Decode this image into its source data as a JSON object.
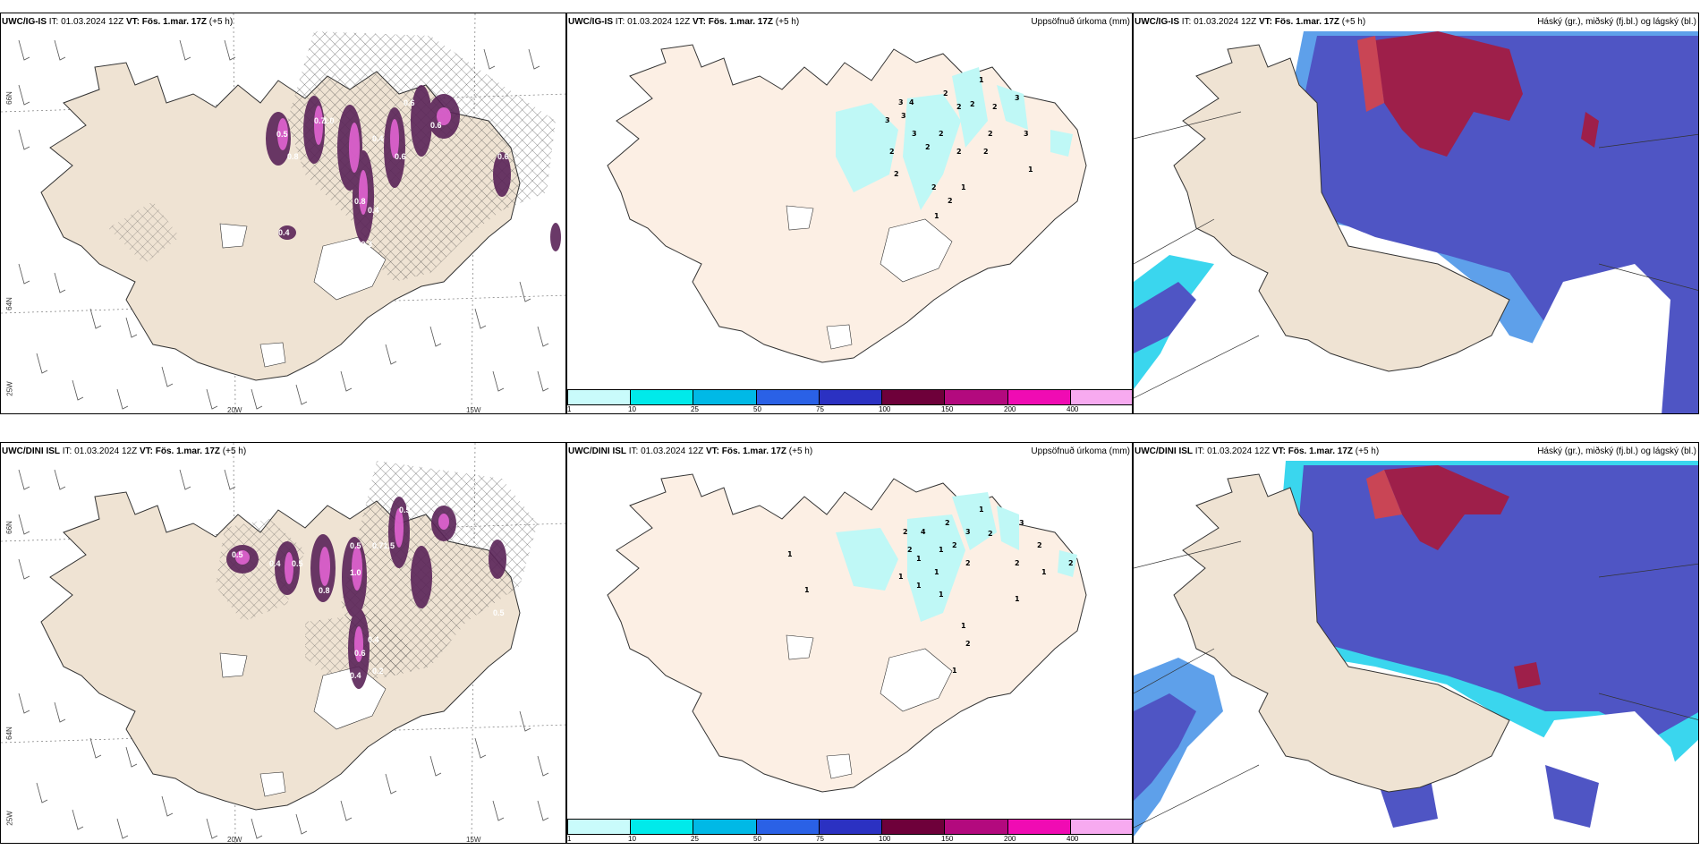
{
  "rows": [
    {
      "model": "UWC/IG-IS",
      "it_label": "IT:",
      "it_value": "01.03.2024 12Z",
      "vt_label": "VT:",
      "vt_value": "Fös. 1.mar. 17Z",
      "lead": "(+5 h)",
      "wind_labels": [
        "0.6",
        "0.7",
        "1.0",
        "0.5",
        "0.4",
        "0.6",
        "0.8",
        "0.4",
        "0.40.3",
        "0.4",
        "0.6",
        "0.8",
        "0.6"
      ],
      "precip_labels": [
        "1",
        "3",
        "4",
        "2",
        "2",
        "2",
        "2",
        "3",
        "3",
        "3",
        "3",
        "2",
        "2",
        "2",
        "3",
        "2",
        "2",
        "2",
        "2",
        "1",
        "2",
        "1",
        "2",
        "1"
      ]
    },
    {
      "model": "UWC/DINI ISL",
      "it_label": "IT:",
      "it_value": "01.03.2024 12Z",
      "vt_label": "VT:",
      "vt_value": "Fös. 1.mar. 17Z",
      "lead": "(+5 h)",
      "wind_labels": [
        "0.5",
        "0.5",
        "0.4",
        "0.5",
        "0.5",
        "0.71.5",
        "1.0",
        "0.8",
        "0.6",
        "0.4",
        "0.2",
        "0.4",
        "0.5"
      ],
      "precip_labels": [
        "1",
        "2",
        "4",
        "2",
        "3",
        "2",
        "3",
        "2",
        "2",
        "1",
        "1",
        "2",
        "1",
        "2",
        "1",
        "1",
        "1",
        "1",
        "2",
        "2",
        "1",
        "2",
        "1",
        "1",
        "1",
        "1"
      ]
    }
  ],
  "precip_panel_title": "Uppsöfnuð úrkoma (mm)",
  "cloud_panel_title": "Háský (gr.), miðský (fj.bl.) og lágský (bl.)",
  "axis": {
    "lon_20w": "20W",
    "lon_15w": "15W",
    "lat_66n": "66N",
    "lat_64n": "64N",
    "lon_25w": "25W"
  },
  "colorbar": {
    "labels": [
      "1",
      "10",
      "25",
      "50",
      "75",
      "100",
      "150",
      "200",
      "400"
    ],
    "colors": [
      "#c9fbfb",
      "#00eaea",
      "#00b9e6",
      "#2a61e6",
      "#2b31c2",
      "#6e003a",
      "#b3097e",
      "#f00bb3",
      "#f7aaf0"
    ]
  },
  "colors": {
    "land": "#efe3d3",
    "land_precip": "#fcefe4",
    "sea": "#ffffff",
    "precip_light": "#bff8f6",
    "purple_dark": "#5a2458",
    "purple_mid": "#b142a8",
    "magenta": "#e866d8",
    "cloud_low": "#4f55c4",
    "cloud_low_edge": "#5ea0ea",
    "cloud_low_outer": "#3ad6ee",
    "cloud_high": "#9e1f4a",
    "cloud_high_edge": "#c94555"
  }
}
